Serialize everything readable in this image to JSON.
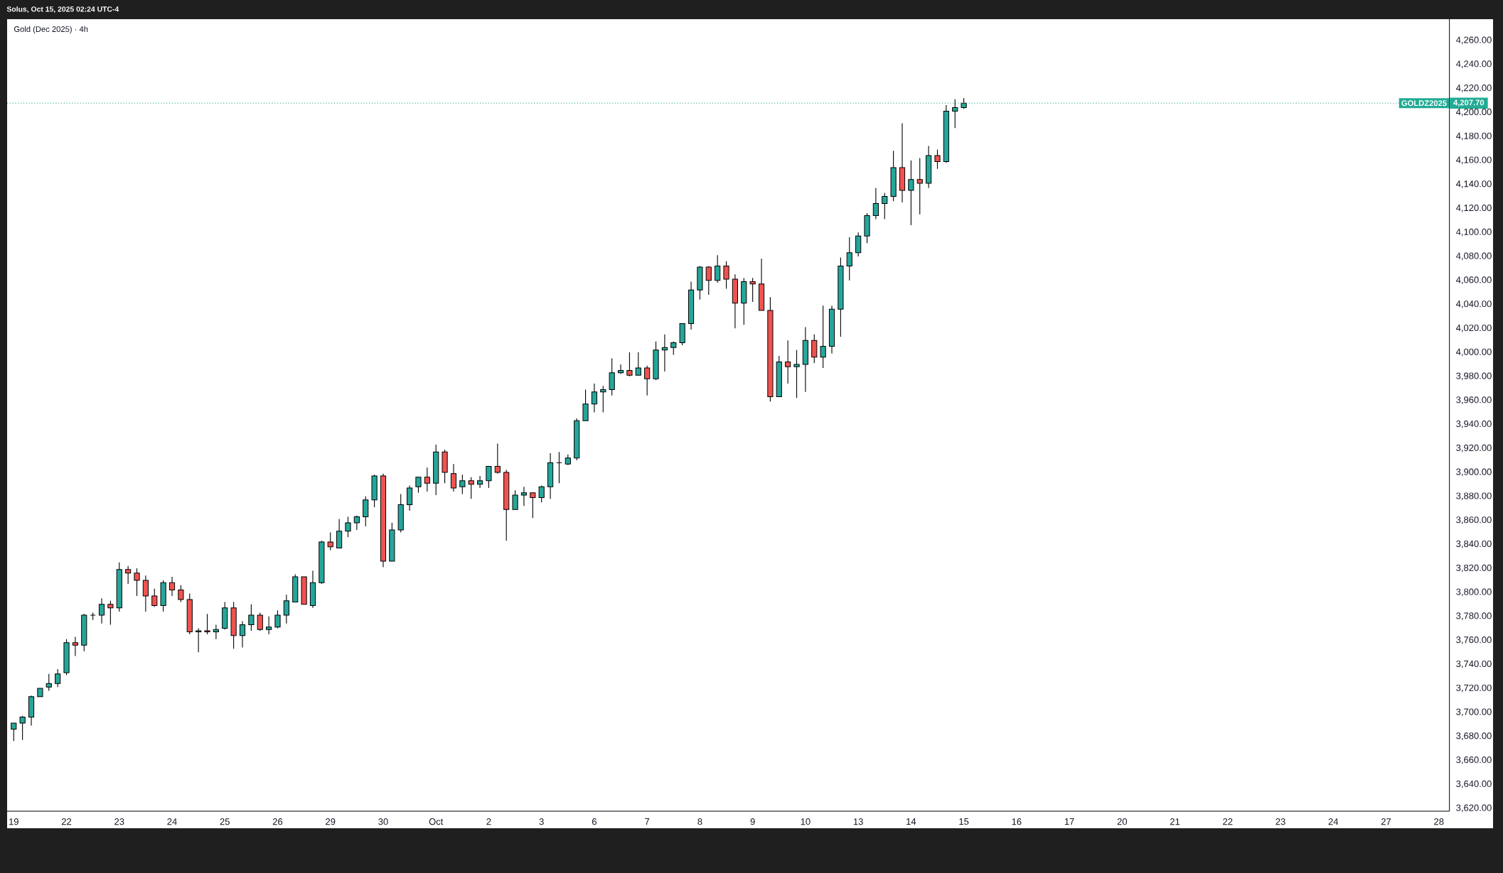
{
  "chart_data": {
    "type": "candlestick",
    "title": "Gold (Dec 2025) · 4h",
    "annotations": [
      "Solus, Oct 15, 2025 02:24 UTC-4",
      "4,207.70"
    ],
    "categories": [
      "19",
      null,
      null,
      null,
      null,
      null,
      "22",
      null,
      null,
      null,
      null,
      null,
      "23",
      null,
      null,
      null,
      null,
      null,
      "24",
      null,
      null,
      null,
      null,
      null,
      "25",
      null,
      null,
      null,
      null,
      null,
      "26",
      null,
      null,
      null,
      null,
      null,
      "29",
      null,
      null,
      null,
      null,
      null,
      "30",
      null,
      null,
      null,
      null,
      null,
      "Oct",
      null,
      null,
      null,
      null,
      null,
      "2",
      null,
      null,
      null,
      null,
      null,
      "3",
      null,
      null,
      null,
      null,
      null,
      "6",
      null,
      null,
      null,
      null,
      null,
      "7",
      null,
      null,
      null,
      null,
      null,
      "8",
      null,
      null,
      null,
      null,
      null,
      "9",
      null,
      null,
      null,
      null,
      null,
      "10",
      null,
      null,
      null,
      null,
      null,
      "13",
      null,
      null,
      null,
      null,
      null,
      "14",
      null,
      null,
      null,
      null,
      null,
      "15",
      null,
      null,
      null,
      null,
      null,
      "16",
      null,
      null,
      null,
      null,
      null,
      "17",
      null,
      null,
      null,
      null,
      null,
      "20",
      null,
      null,
      null,
      null,
      null,
      "21",
      null,
      null,
      null,
      null,
      null,
      "22",
      null,
      null,
      null,
      null,
      null,
      "23",
      null,
      null,
      null,
      null,
      null,
      "24",
      null,
      null,
      null,
      null,
      null,
      "27",
      null,
      null,
      null,
      null,
      null,
      "28"
    ],
    "ohlc": [
      [
        3686,
        3691,
        3676,
        3691
      ],
      [
        3691,
        3697,
        3677,
        3696
      ],
      [
        3696,
        3714,
        3689,
        3713
      ],
      [
        3713,
        3720,
        3713,
        3720
      ],
      [
        3721,
        3732,
        3718,
        3724
      ],
      [
        3724,
        3736,
        3721,
        3732
      ],
      [
        3733,
        3761,
        3731,
        3758
      ],
      [
        3758,
        3763,
        3747,
        3756
      ],
      [
        3756,
        3782,
        3751,
        3781
      ],
      [
        3781,
        3783,
        3777,
        3781
      ],
      [
        3781,
        3795,
        3774,
        3790
      ],
      [
        3790,
        3793,
        3773,
        3787
      ],
      [
        3787,
        3825,
        3784,
        3819
      ],
      [
        3819,
        3822,
        3807,
        3816
      ],
      [
        3816,
        3820,
        3797,
        3810
      ],
      [
        3810,
        3814,
        3784,
        3797
      ],
      [
        3797,
        3803,
        3788,
        3789
      ],
      [
        3789,
        3810,
        3784,
        3808
      ],
      [
        3808,
        3813,
        3797,
        3802
      ],
      [
        3802,
        3806,
        3792,
        3794
      ],
      [
        3794,
        3799,
        3765,
        3767
      ],
      [
        3767,
        3770,
        3750,
        3768
      ],
      [
        3768,
        3782,
        3765,
        3767
      ],
      [
        3767,
        3773,
        3761,
        3769
      ],
      [
        3770,
        3792,
        3769,
        3787
      ],
      [
        3787,
        3792,
        3753,
        3764
      ],
      [
        3764,
        3776,
        3754,
        3773
      ],
      [
        3773,
        3790,
        3768,
        3781
      ],
      [
        3781,
        3783,
        3768,
        3769
      ],
      [
        3769,
        3780,
        3765,
        3771
      ],
      [
        3771,
        3785,
        3770,
        3781
      ],
      [
        3781,
        3798,
        3774,
        3793
      ],
      [
        3792,
        3815,
        3792,
        3813
      ],
      [
        3813,
        3813,
        3790,
        3790
      ],
      [
        3789,
        3818,
        3787,
        3808
      ],
      [
        3808,
        3843,
        3807,
        3842
      ],
      [
        3842,
        3850,
        3835,
        3838
      ],
      [
        3837,
        3861,
        3837,
        3851
      ],
      [
        3851,
        3863,
        3846,
        3858
      ],
      [
        3858,
        3864,
        3852,
        3863
      ],
      [
        3863,
        3880,
        3855,
        3877
      ],
      [
        3877,
        3898,
        3871,
        3897
      ],
      [
        3897,
        3899,
        3821,
        3826
      ],
      [
        3826,
        3858,
        3826,
        3852
      ],
      [
        3852,
        3882,
        3850,
        3873
      ],
      [
        3873,
        3889,
        3868,
        3887
      ],
      [
        3888,
        3896,
        3883,
        3896
      ],
      [
        3896,
        3904,
        3884,
        3891
      ],
      [
        3891,
        3923,
        3881,
        3917
      ],
      [
        3917,
        3919,
        3891,
        3900
      ],
      [
        3899,
        3907,
        3884,
        3887
      ],
      [
        3888,
        3898,
        3882,
        3893
      ],
      [
        3893,
        3896,
        3878,
        3890
      ],
      [
        3890,
        3897,
        3887,
        3893
      ],
      [
        3893,
        3905,
        3887,
        3905
      ],
      [
        3905,
        3924,
        3899,
        3900
      ],
      [
        3900,
        3902,
        3843,
        3869
      ],
      [
        3869,
        3885,
        3869,
        3881
      ],
      [
        3881,
        3888,
        3872,
        3883
      ],
      [
        3883,
        3883,
        3862,
        3879
      ],
      [
        3879,
        3889,
        3875,
        3888
      ],
      [
        3888,
        3916,
        3878,
        3908
      ],
      [
        3908,
        3917,
        3891,
        3908
      ],
      [
        3907,
        3915,
        3906,
        3912
      ],
      [
        3912,
        3945,
        3910,
        3943
      ],
      [
        3943,
        3969,
        3943,
        3957
      ],
      [
        3957,
        3974,
        3950,
        3967
      ],
      [
        3967,
        3972,
        3950,
        3969
      ],
      [
        3969,
        3995,
        3964,
        3983
      ],
      [
        3983,
        3990,
        3982,
        3985
      ],
      [
        3985,
        4000,
        3980,
        3981
      ],
      [
        3981,
        4000,
        3981,
        3987
      ],
      [
        3987,
        3989,
        3964,
        3978
      ],
      [
        3978,
        4009,
        3977,
        4002
      ],
      [
        4002,
        4015,
        3984,
        4004
      ],
      [
        4004,
        4009,
        3998,
        4008
      ],
      [
        4008,
        4024,
        4006,
        4024
      ],
      [
        4024,
        4059,
        4019,
        4052
      ],
      [
        4052,
        4072,
        4044,
        4071
      ],
      [
        4071,
        4072,
        4048,
        4060
      ],
      [
        4060,
        4081,
        4058,
        4072
      ],
      [
        4072,
        4076,
        4053,
        4061
      ],
      [
        4061,
        4065,
        4020,
        4041
      ],
      [
        4041,
        4062,
        4023,
        4059
      ],
      [
        4059,
        4062,
        4042,
        4057
      ],
      [
        4057,
        4078,
        4035,
        4035
      ],
      [
        4035,
        4046,
        3959,
        3963
      ],
      [
        3963,
        3997,
        3963,
        3992
      ],
      [
        3992,
        4010,
        3974,
        3988
      ],
      [
        3988,
        4002,
        3962,
        3990
      ],
      [
        3990,
        4021,
        3967,
        4010
      ],
      [
        4010,
        4015,
        3991,
        3996
      ],
      [
        3996,
        4039,
        3987,
        4005
      ],
      [
        4005,
        4039,
        3999,
        4036
      ],
      [
        4036,
        4079,
        4013,
        4072
      ],
      [
        4072,
        4096,
        4060,
        4083
      ],
      [
        4083,
        4100,
        4080,
        4097
      ],
      [
        4097,
        4116,
        4091,
        4114
      ],
      [
        4114,
        4137,
        4111,
        4124
      ],
      [
        4124,
        4133,
        4111,
        4130
      ],
      [
        4130,
        4168,
        4126,
        4154
      ],
      [
        4154,
        4191,
        4125,
        4135
      ],
      [
        4135,
        4160,
        4106,
        4144
      ],
      [
        4144,
        4162,
        4115,
        4141
      ],
      [
        4141,
        4172,
        4137,
        4164
      ],
      [
        4164,
        4169,
        4153,
        4159
      ],
      [
        4159,
        4206,
        4158,
        4201
      ],
      [
        4201,
        4211,
        4187,
        4204
      ],
      [
        4204,
        4212,
        4203,
        4207.7
      ],
      null,
      null,
      null,
      null,
      null,
      null,
      null,
      null,
      null,
      null,
      null,
      null,
      null,
      null,
      null,
      null,
      null,
      null,
      null,
      null,
      null,
      null,
      null,
      null,
      null,
      null,
      null,
      null,
      null,
      null,
      null,
      null,
      null,
      null,
      null,
      null,
      null,
      null,
      null,
      null,
      null,
      null,
      null,
      null,
      null,
      null,
      null,
      null,
      null,
      null,
      null,
      null,
      null,
      null
    ],
    "colors": [
      "#26a69a",
      "#26a69a",
      "#26a69a",
      "#26a69a",
      "#26a69a",
      "#26a69a",
      "#26a69a",
      "#ef5350",
      "#26a69a",
      "#000000",
      "#26a69a",
      "#ef5350",
      "#26a69a",
      "#ef5350",
      "#ef5350",
      "#ef5350",
      "#ef5350",
      "#26a69a",
      "#ef5350",
      "#ef5350",
      "#ef5350",
      "#26a69a",
      "#ef5350",
      "#26a69a",
      "#26a69a",
      "#ef5350",
      "#26a69a",
      "#26a69a",
      "#ef5350",
      "#26a69a",
      "#26a69a",
      "#26a69a",
      "#26a69a",
      "#ef5350",
      "#26a69a",
      "#26a69a",
      "#ef5350",
      "#26a69a",
      "#26a69a",
      "#26a69a",
      "#26a69a",
      "#26a69a",
      "#ef5350",
      "#26a69a",
      "#26a69a",
      "#26a69a",
      "#26a69a",
      "#ef5350",
      "#26a69a",
      "#ef5350",
      "#ef5350",
      "#26a69a",
      "#ef5350",
      "#26a69a",
      "#26a69a",
      "#ef5350",
      "#ef5350",
      "#26a69a",
      "#26a69a",
      "#ef5350",
      "#26a69a",
      "#26a69a",
      "#000000",
      "#26a69a",
      "#26a69a",
      "#26a69a",
      "#26a69a",
      "#26a69a",
      "#26a69a",
      "#26a69a",
      "#ef5350",
      "#26a69a",
      "#ef5350",
      "#26a69a",
      "#26a69a",
      "#26a69a",
      "#26a69a",
      "#26a69a",
      "#26a69a",
      "#ef5350",
      "#26a69a",
      "#ef5350",
      "#ef5350",
      "#26a69a",
      "#ef5350",
      "#ef5350",
      "#ef5350",
      "#26a69a",
      "#ef5350",
      "#26a69a",
      "#26a69a",
      "#ef5350",
      "#26a69a",
      "#26a69a",
      "#26a69a",
      "#26a69a",
      "#26a69a",
      "#26a69a",
      "#26a69a",
      "#26a69a",
      "#26a69a",
      "#ef5350",
      "#26a69a",
      "#ef5350",
      "#26a69a",
      "#ef5350",
      "#26a69a",
      "#26a69a",
      "#26a69a",
      null,
      null,
      null,
      null,
      null,
      null,
      null,
      null,
      null,
      null,
      null,
      null,
      null,
      null,
      null,
      null,
      null,
      null,
      null,
      null,
      null,
      null,
      null,
      null,
      null,
      null,
      null,
      null,
      null,
      null,
      null,
      null,
      null,
      null,
      null,
      null,
      null,
      null,
      null,
      null,
      null,
      null,
      null,
      null,
      null,
      null,
      null,
      null,
      null,
      null,
      null,
      null,
      null,
      null
    ],
    "ylim": [
      3617.6,
      4277.7
    ],
    "yticks": [
      {
        "value": 3620,
        "label": "3,620.00"
      },
      {
        "value": 3640,
        "label": "3,640.00"
      },
      {
        "value": 3660,
        "label": "3,660.00"
      },
      {
        "value": 3680,
        "label": "3,680.00"
      },
      {
        "value": 3700,
        "label": "3,700.00"
      },
      {
        "value": 3720,
        "label": "3,720.00"
      },
      {
        "value": 3740,
        "label": "3,740.00"
      },
      {
        "value": 3760,
        "label": "3,760.00"
      },
      {
        "value": 3780,
        "label": "3,780.00"
      },
      {
        "value": 3800,
        "label": "3,800.00"
      },
      {
        "value": 3820,
        "label": "3,820.00"
      },
      {
        "value": 3840,
        "label": "3,840.00"
      },
      {
        "value": 3860,
        "label": "3,860.00"
      },
      {
        "value": 3880,
        "label": "3,880.00"
      },
      {
        "value": 3900,
        "label": "3,900.00"
      },
      {
        "value": 3920,
        "label": "3,920.00"
      },
      {
        "value": 3940,
        "label": "3,940.00"
      },
      {
        "value": 3960,
        "label": "3,960.00"
      },
      {
        "value": 3980,
        "label": "3,980.00"
      },
      {
        "value": 4000,
        "label": "4,000.00"
      },
      {
        "value": 4020,
        "label": "4,020.00"
      },
      {
        "value": 4040,
        "label": "4,040.00"
      },
      {
        "value": 4060,
        "label": "4,060.00"
      },
      {
        "value": 4080,
        "label": "4,080.00"
      },
      {
        "value": 4100,
        "label": "4,100.00"
      },
      {
        "value": 4120,
        "label": "4,120.00"
      },
      {
        "value": 4140,
        "label": "4,140.00"
      },
      {
        "value": 4160,
        "label": "4,160.00"
      },
      {
        "value": 4180,
        "label": "4,180.00"
      },
      {
        "value": 4200,
        "label": "4,200.00"
      },
      {
        "value": 4220,
        "label": "4,220.00"
      },
      {
        "value": 4240,
        "label": "4,240.00"
      },
      {
        "value": 4260,
        "label": "4,260.00"
      }
    ],
    "ref_lines": [
      {
        "axis": "y",
        "value": 4207.7,
        "label": "GOLDZ2025",
        "color": "#22ab94",
        "line_style": "dotted"
      }
    ]
  }
}
